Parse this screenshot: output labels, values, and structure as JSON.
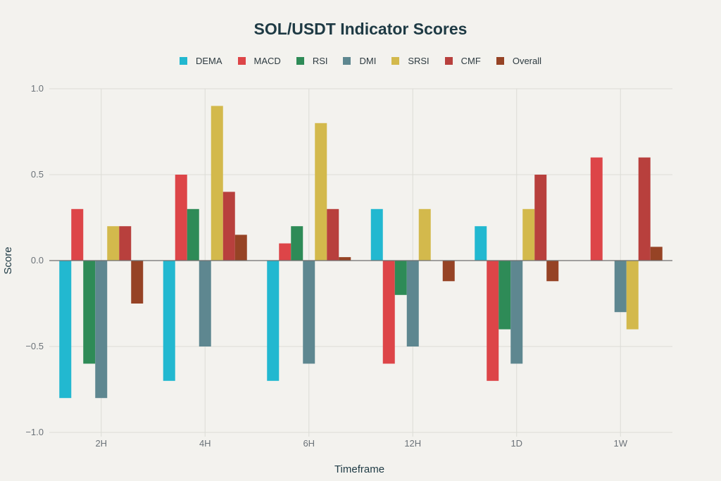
{
  "chart_data": {
    "type": "bar",
    "title": "SOL/USDT Indicator Scores",
    "xlabel": "Timeframe",
    "ylabel": "Score",
    "ylim": [
      -1.0,
      1.0
    ],
    "yticks": [
      "1.0",
      "0.5",
      "0.0",
      "−0.5",
      "−1.0"
    ],
    "ytick_values": [
      1.0,
      0.5,
      0.0,
      -0.5,
      -1.0
    ],
    "grid": true,
    "legend_position": "top",
    "categories": [
      "2H",
      "4H",
      "6H",
      "12H",
      "1D",
      "1W"
    ],
    "series": [
      {
        "name": "DEMA",
        "color": "#22b8d0",
        "values": [
          -0.8,
          -0.7,
          -0.7,
          0.3,
          0.2,
          0.0
        ]
      },
      {
        "name": "MACD",
        "color": "#dd4548",
        "values": [
          0.3,
          0.5,
          0.1,
          -0.6,
          -0.7,
          0.6
        ]
      },
      {
        "name": "RSI",
        "color": "#2e8b57",
        "values": [
          -0.6,
          0.3,
          0.2,
          -0.2,
          -0.4,
          0.0
        ]
      },
      {
        "name": "DMI",
        "color": "#5e8790",
        "values": [
          -0.8,
          -0.5,
          -0.6,
          -0.5,
          -0.6,
          -0.3
        ]
      },
      {
        "name": "SRSI",
        "color": "#d3b94c",
        "values": [
          0.2,
          0.9,
          0.8,
          0.3,
          0.3,
          -0.4
        ]
      },
      {
        "name": "CMF",
        "color": "#b8403d",
        "values": [
          0.2,
          0.4,
          0.3,
          0.0,
          0.5,
          0.6
        ]
      },
      {
        "name": "Overall",
        "color": "#964325",
        "values": [
          -0.25,
          0.15,
          0.02,
          -0.12,
          -0.12,
          0.08
        ]
      }
    ]
  }
}
